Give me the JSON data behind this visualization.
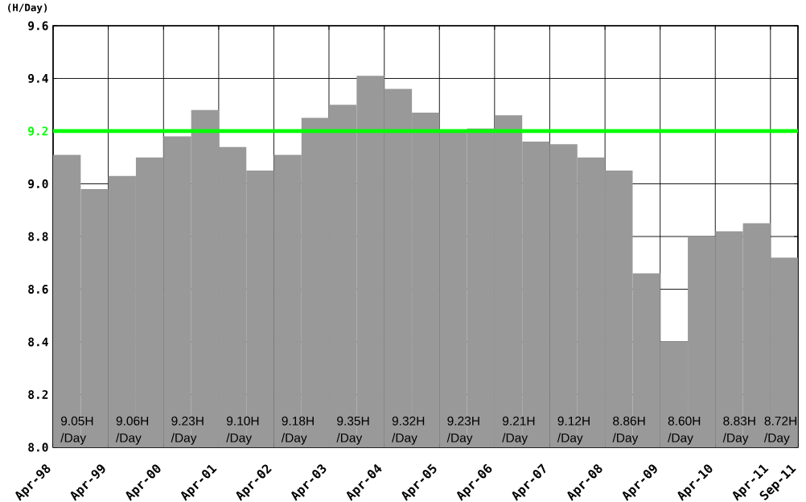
{
  "chart_data": {
    "type": "bar",
    "ylabel": "(H/Day)",
    "x": [
      "1998-07",
      "1999-01",
      "1999-07",
      "2000-01",
      "2000-07",
      "2001-01",
      "2001-07",
      "2002-01",
      "2002-07",
      "2003-01",
      "2003-07",
      "2004-01",
      "2004-07",
      "2005-01",
      "2005-07",
      "2006-01",
      "2006-07",
      "2007-01",
      "2007-07",
      "2008-01",
      "2008-07",
      "2009-01",
      "2009-07",
      "2010-01",
      "2010-07",
      "2011-01",
      "2011-07"
    ],
    "values": [
      9.11,
      8.98,
      9.03,
      9.1,
      9.18,
      9.28,
      9.14,
      9.05,
      9.11,
      9.25,
      9.3,
      9.41,
      9.36,
      9.27,
      9.2,
      9.21,
      9.26,
      9.16,
      9.15,
      9.1,
      9.05,
      8.66,
      8.4,
      8.8,
      8.82,
      8.85,
      8.72
    ],
    "color": "#999999",
    "xlim": [
      "1998-04",
      "2011-09-30"
    ],
    "xticks": [
      {
        "value": "1998-04",
        "label": "Apr-98"
      },
      {
        "value": "1999-04",
        "label": "Apr-99"
      },
      {
        "value": "2000-04",
        "label": "Apr-00"
      },
      {
        "value": "2001-04",
        "label": "Apr-01"
      },
      {
        "value": "2002-04",
        "label": "Apr-02"
      },
      {
        "value": "2003-04",
        "label": "Apr-03"
      },
      {
        "value": "2004-04",
        "label": "Apr-04"
      },
      {
        "value": "2005-04",
        "label": "Apr-05"
      },
      {
        "value": "2006-04",
        "label": "Apr-06"
      },
      {
        "value": "2007-04",
        "label": "Apr-07"
      },
      {
        "value": "2008-04",
        "label": "Apr-08"
      },
      {
        "value": "2009-04",
        "label": "Apr-09"
      },
      {
        "value": "2010-04",
        "label": "Apr-10"
      },
      {
        "value": "2011-04",
        "label": "Apr-11"
      },
      {
        "value": "2011-09-30",
        "label": "Sep-11"
      }
    ],
    "ylim": [
      8.0,
      9.6
    ],
    "yticks": [
      {
        "value": 8.0,
        "label": "8.0"
      },
      {
        "value": 8.2,
        "label": "8.2"
      },
      {
        "value": 8.4,
        "label": "8.4"
      },
      {
        "value": 8.6,
        "label": "8.6"
      },
      {
        "value": 8.8,
        "label": "8.8"
      },
      {
        "value": 9.0,
        "label": "9.0"
      },
      {
        "value": 9.2,
        "label": "9.2"
      },
      {
        "value": 9.4,
        "label": "9.4"
      },
      {
        "value": 9.6,
        "label": "9.6"
      }
    ],
    "grid": true,
    "ref_lines": [
      {
        "axis": "y",
        "value": 9.2,
        "color": "#00ff00"
      }
    ],
    "annotations": [
      "9.05H /Day",
      "9.06H /Day",
      "9.23H /Day",
      "9.10H /Day",
      "9.18H /Day",
      "9.35H /Day",
      "9.32H /Day",
      "9.23H /Day",
      "9.21H /Day",
      "9.12H /Day",
      "8.86H /Day",
      "8.60H /Day",
      "8.83H /Day",
      "8.72H /Day"
    ]
  }
}
